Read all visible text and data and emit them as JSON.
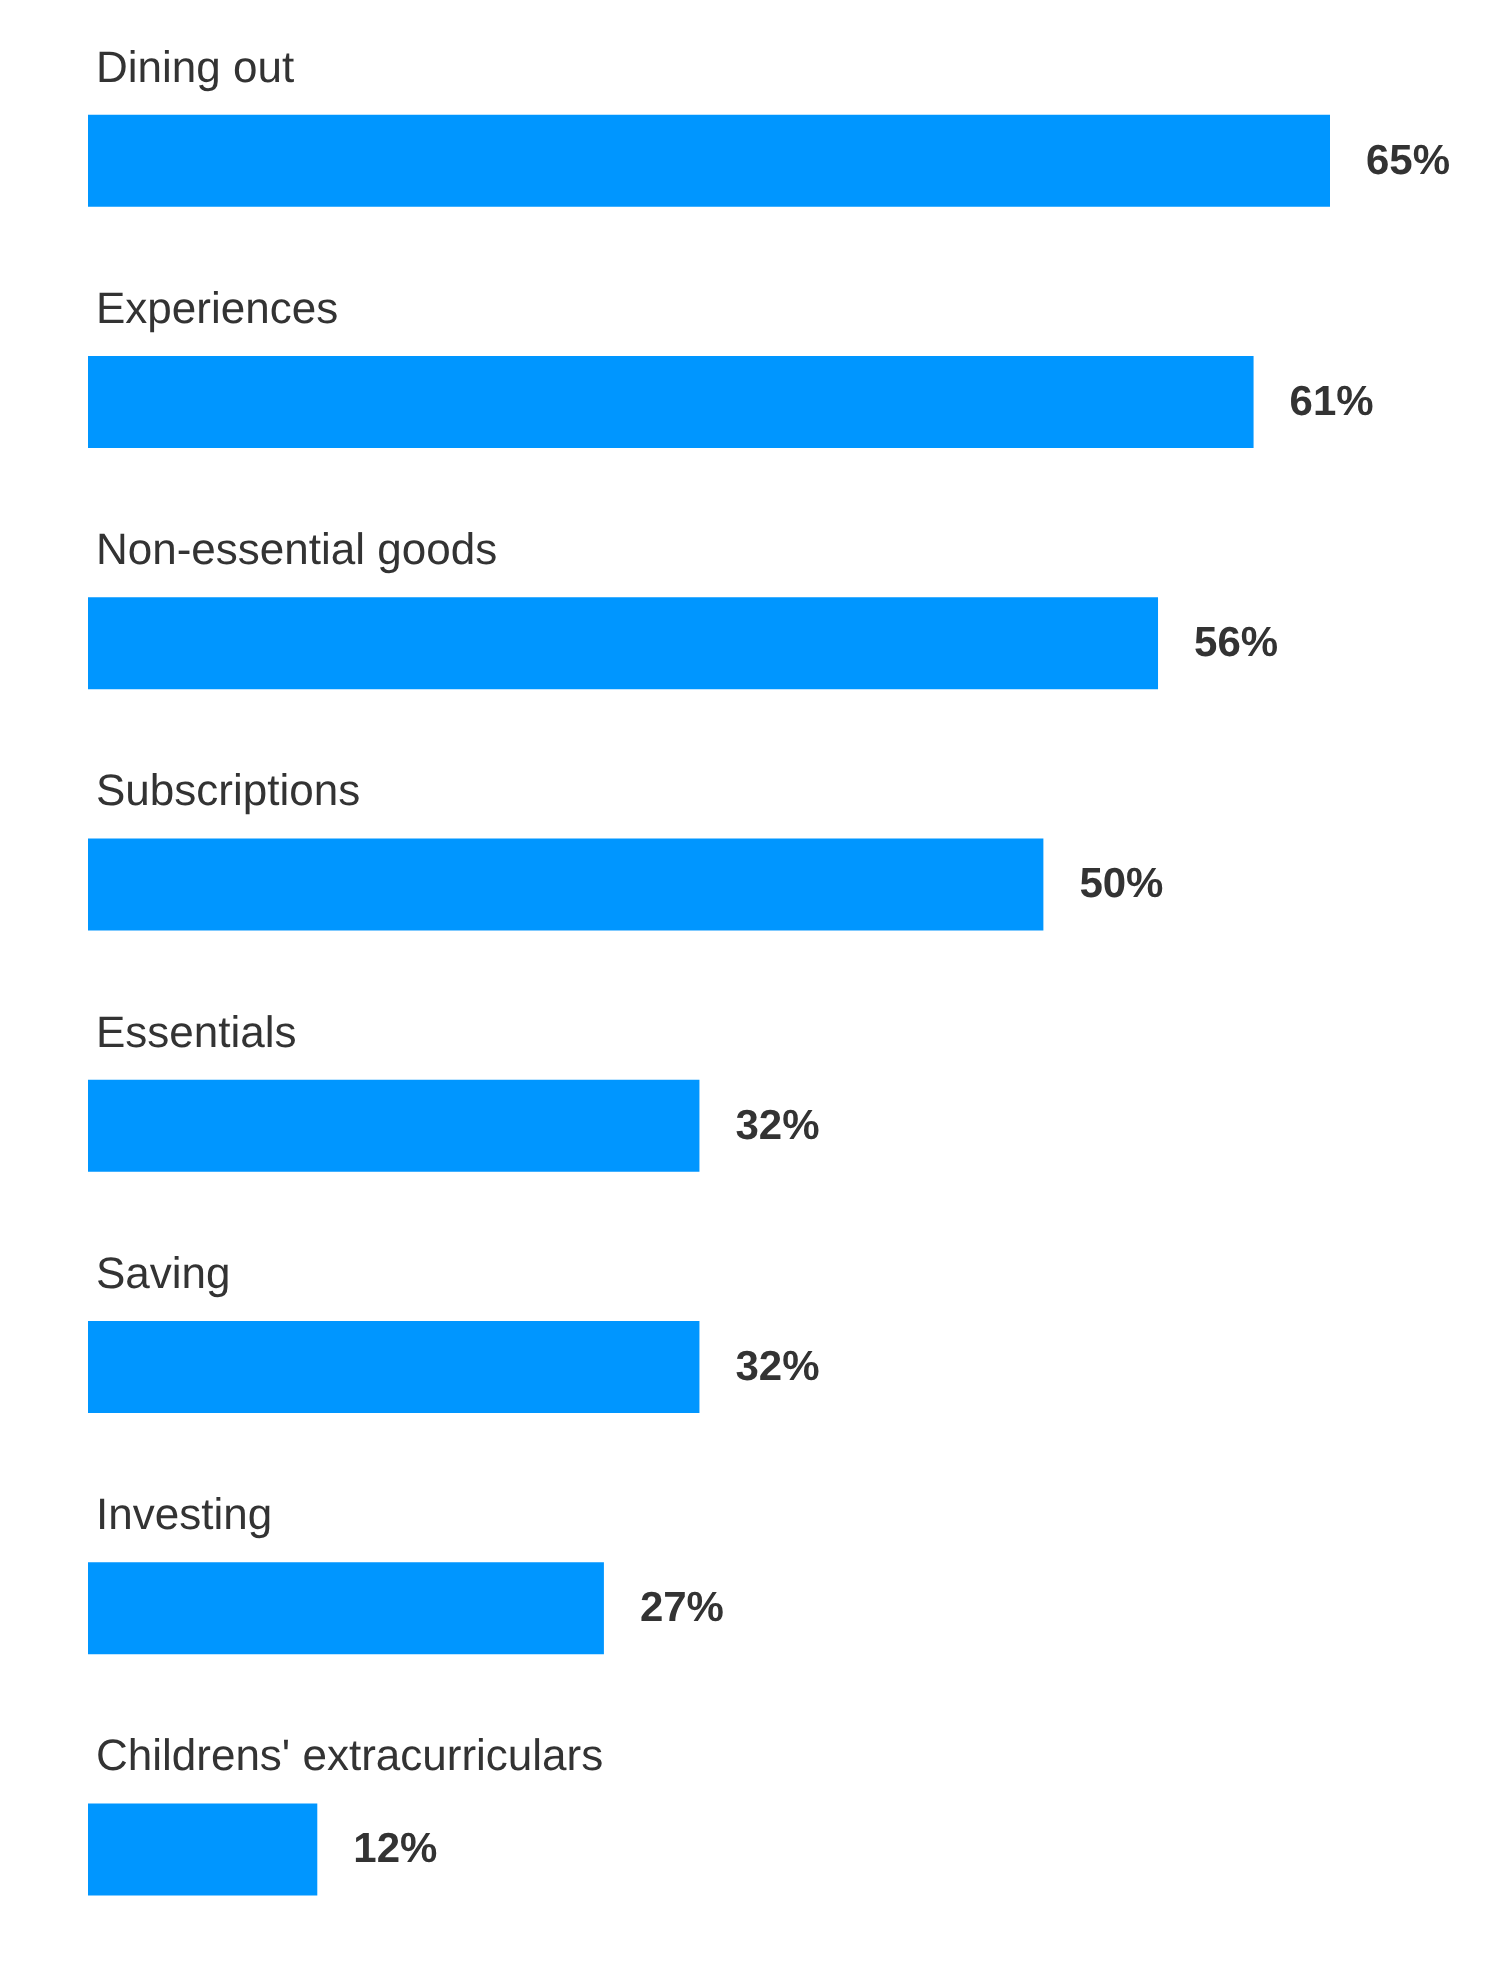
{
  "chart_data": {
    "type": "bar",
    "orientation": "horizontal",
    "categories": [
      "Dining out",
      "Experiences",
      "Non-essential goods",
      "Subscriptions",
      "Essentials",
      "Saving",
      "Investing",
      "Childrens' extracurriculars"
    ],
    "values": [
      65,
      61,
      56,
      50,
      32,
      32,
      27,
      12
    ],
    "value_labels": [
      "65%",
      "61%",
      "56%",
      "50%",
      "32%",
      "32%",
      "27%",
      "12%"
    ],
    "color": "#0096ff"
  }
}
